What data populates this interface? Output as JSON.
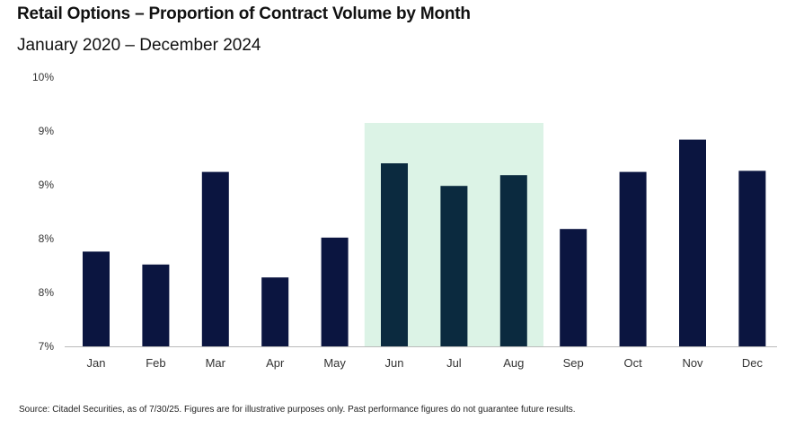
{
  "header": {
    "title": "Retail Options – Proportion of Contract Volume by Month",
    "subtitle": "January 2020 – December 2024"
  },
  "footer": {
    "source": "Source: Citadel Securities, as of 7/30/25. Figures are for illustrative purposes only. Past performance figures do not guarantee future results."
  },
  "colors": {
    "bar": "#0b1540",
    "bar_highlight": "#0b2a3f",
    "highlight_band": "#dcf3e6",
    "axis": "#bbbbbb"
  },
  "chart_data": {
    "type": "bar",
    "title": "Retail Options – Proportion of Contract Volume by Month",
    "subtitle": "January 2020 – December 2024",
    "xlabel": "",
    "ylabel": "",
    "categories": [
      "Jan",
      "Feb",
      "Mar",
      "Apr",
      "May",
      "Jun",
      "Jul",
      "Aug",
      "Sep",
      "Oct",
      "Nov",
      "Dec"
    ],
    "values": [
      7.88,
      7.76,
      8.62,
      7.64,
      8.01,
      8.7,
      8.49,
      8.59,
      8.09,
      8.62,
      8.92,
      8.63
    ],
    "ylim": [
      7.0,
      10.0
    ],
    "yticks": [
      7.0,
      7.5,
      8.0,
      8.5,
      9.0,
      10.0
    ],
    "ytick_labels": [
      "7%",
      "8%",
      "8%",
      "9%",
      "9%",
      "10%"
    ],
    "highlight": {
      "categories": [
        "Jun",
        "Jul",
        "Aug"
      ]
    },
    "grid": false,
    "legend": "none"
  }
}
